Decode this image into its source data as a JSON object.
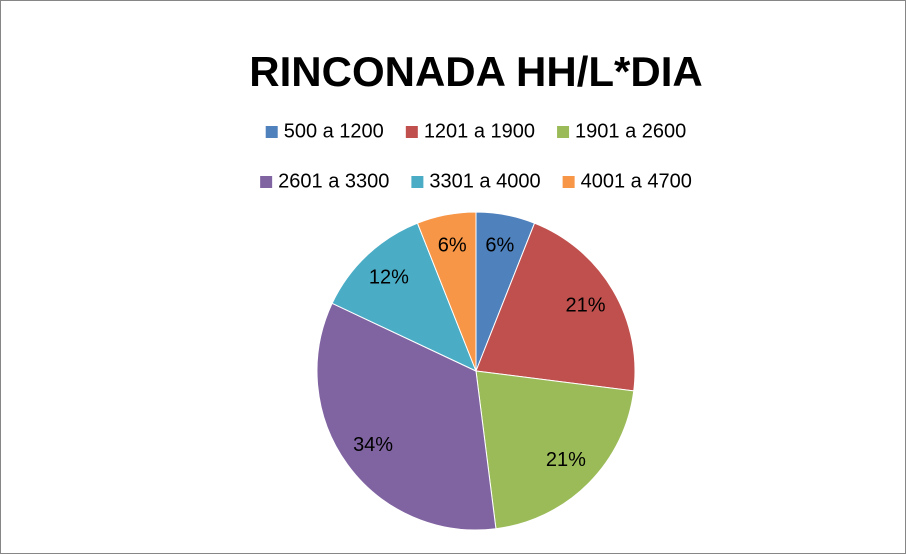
{
  "chart_data": {
    "type": "pie",
    "title": "RINCONADA HH/L*DIA",
    "categories": [
      "500 a 1200",
      "1201 a 1900",
      "1901 a 2600",
      "2601 a 3300",
      "3301 a 4000",
      "4001 a 4700"
    ],
    "values": [
      6,
      21,
      21,
      34,
      12,
      6
    ],
    "value_labels": [
      "6%",
      "21%",
      "21%",
      "34%",
      "12%",
      "6%"
    ],
    "colors": [
      "#4f81bd",
      "#c0504d",
      "#9bbb59",
      "#8064a2",
      "#4bacc6",
      "#f79646"
    ],
    "legend": "top"
  }
}
